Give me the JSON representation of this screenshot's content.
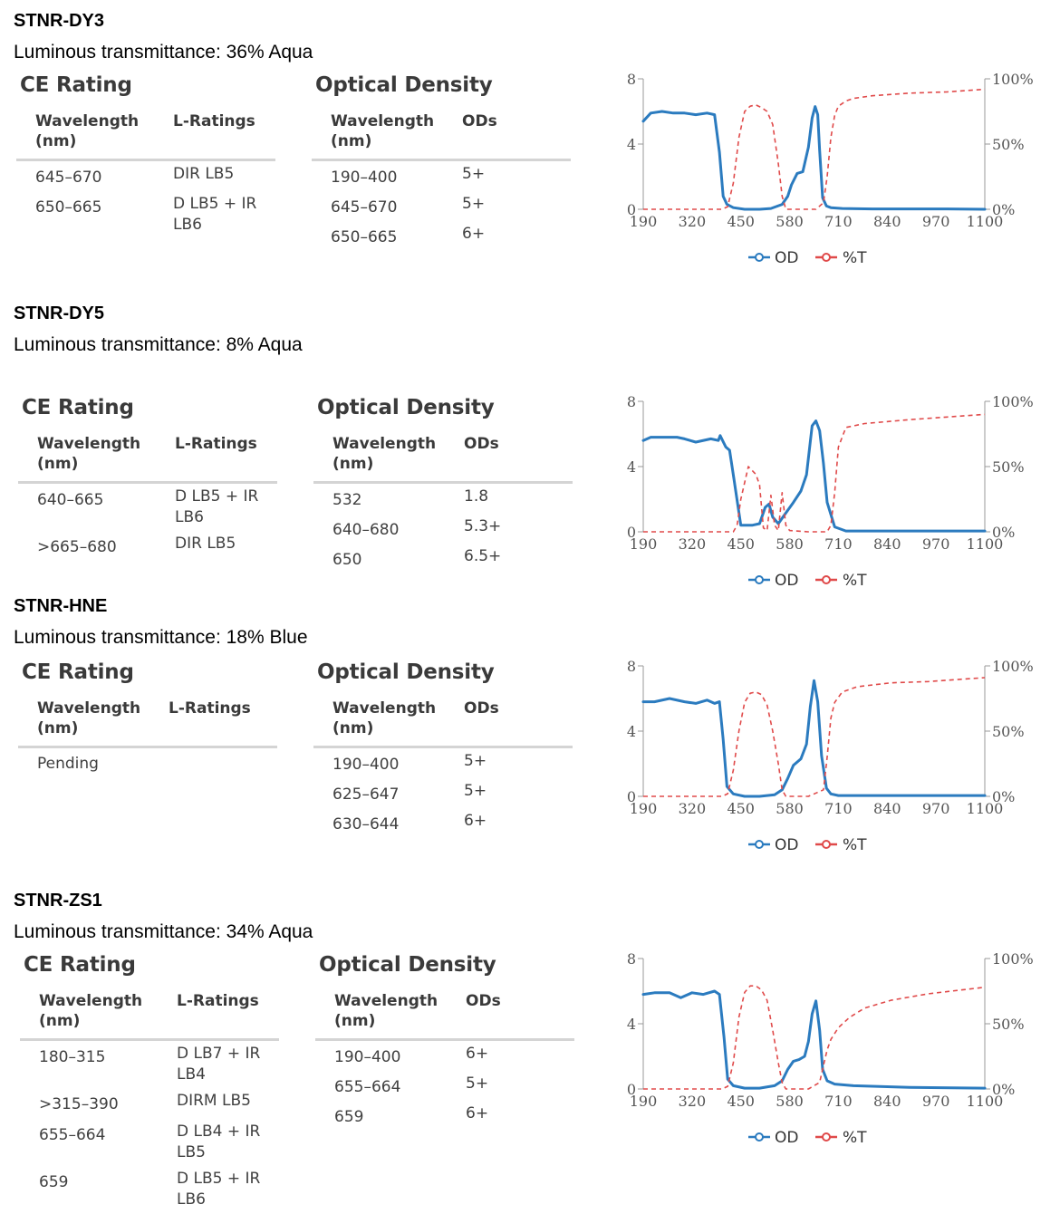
{
  "products": [
    {
      "name": "STNR-DY3",
      "luminous": "Luminous transmittance: 36% Aqua",
      "ce": {
        "title": "CE Rating",
        "col1": "Wavelength (nm)",
        "col2": "L-Ratings",
        "rows": [
          {
            "wavelength": "645–670",
            "rating": "DIR LB5"
          },
          {
            "wavelength": "650–665",
            "rating": "D LB5 + IR LB6"
          }
        ]
      },
      "od": {
        "title": "Optical Density",
        "col1": "Wavelength (nm)",
        "col2": "ODs",
        "rows": [
          {
            "wavelength": "190–400",
            "od": "5+"
          },
          {
            "wavelength": "645–670",
            "od": "5+"
          },
          {
            "wavelength": "650–665",
            "od": "6+"
          }
        ]
      }
    },
    {
      "name": "STNR-DY5",
      "luminous": "Luminous transmittance: 8% Aqua",
      "ce": {
        "title": "CE Rating",
        "col1": "Wavelength (nm)",
        "col2": "L-Ratings",
        "rows": [
          {
            "wavelength": "640–665",
            "rating": "D LB5 + IR LB6"
          },
          {
            "wavelength": ">665–680",
            "rating": "DIR LB5"
          }
        ]
      },
      "od": {
        "title": "Optical Density",
        "col1": "Wavelength (nm)",
        "col2": "ODs",
        "rows": [
          {
            "wavelength": "532",
            "od": "1.8"
          },
          {
            "wavelength": "640–680",
            "od": "5.3+"
          },
          {
            "wavelength": "650",
            "od": "6.5+"
          }
        ]
      }
    },
    {
      "name": "STNR-HNE",
      "luminous": "Luminous transmittance: 18% Blue",
      "ce": {
        "title": "CE Rating",
        "col1": "Wavelength (nm)",
        "col2": "L-Ratings",
        "rows": [
          {
            "wavelength": "Pending",
            "rating": ""
          }
        ]
      },
      "od": {
        "title": "Optical Density",
        "col1": "Wavelength (nm)",
        "col2": "ODs",
        "rows": [
          {
            "wavelength": "190–400",
            "od": "5+"
          },
          {
            "wavelength": "625–647",
            "od": "5+"
          },
          {
            "wavelength": "630–644",
            "od": "6+"
          }
        ]
      }
    },
    {
      "name": "STNR-ZS1",
      "luminous": "Luminous transmittance: 34% Aqua",
      "ce": {
        "title": "CE Rating",
        "col1": "Wavelength (nm)",
        "col2": "L-Ratings",
        "rows": [
          {
            "wavelength": "180–315",
            "rating": "D LB7 + IR LB4"
          },
          {
            "wavelength": ">315–390",
            "rating": "DIRM LB5"
          },
          {
            "wavelength": "655–664",
            "rating": "D LB4 + IR LB5"
          },
          {
            "wavelength": "659",
            "rating": "D LB5 + IR LB6"
          }
        ]
      },
      "od": {
        "title": "Optical Density",
        "col1": "Wavelength (nm)",
        "col2": "ODs",
        "rows": [
          {
            "wavelength": "190–400",
            "od": "6+"
          },
          {
            "wavelength": "655–664",
            "od": "5+"
          },
          {
            "wavelength": "659",
            "od": "6+"
          }
        ]
      }
    }
  ],
  "colors": {
    "od": "#2b7bbf",
    "transmittance": "#e04a4a",
    "axis": "#999999",
    "tick_text": "#555555"
  },
  "chart_data": [
    {
      "type": "line",
      "x_ticks": [
        "190",
        "320",
        "450",
        "580",
        "710",
        "840",
        "970",
        "1100"
      ],
      "y_left_ticks": [
        "0",
        "4",
        "8"
      ],
      "y_right_ticks": [
        "0%",
        "50%",
        "100%"
      ],
      "xlim": [
        190,
        1100
      ],
      "ylim": [
        0,
        8
      ],
      "y2lim": [
        0,
        100
      ],
      "legend": [
        "OD",
        "%T"
      ],
      "series": [
        {
          "name": "OD",
          "axis": "left",
          "x": [
            190,
            210,
            240,
            270,
            300,
            330,
            360,
            380,
            393,
            403,
            413,
            430,
            460,
            500,
            530,
            560,
            575,
            585,
            600,
            615,
            630,
            640,
            648,
            655,
            660,
            668,
            678,
            690,
            720,
            800,
            900,
            1000,
            1100
          ],
          "y": [
            5.4,
            5.9,
            6.0,
            5.9,
            5.9,
            5.8,
            5.9,
            5.8,
            3.5,
            0.8,
            0.3,
            0.1,
            0.0,
            0.0,
            0.05,
            0.3,
            0.8,
            1.5,
            2.2,
            2.3,
            3.8,
            5.6,
            6.3,
            5.8,
            3.6,
            0.7,
            0.2,
            0.1,
            0.05,
            0.02,
            0.02,
            0.02,
            0.0
          ]
        },
        {
          "name": "%T",
          "axis": "right",
          "x": [
            190,
            400,
            415,
            430,
            445,
            460,
            475,
            490,
            505,
            520,
            535,
            550,
            560,
            570,
            600,
            650,
            670,
            680,
            690,
            700,
            710,
            730,
            750,
            800,
            900,
            1000,
            1100
          ],
          "y": [
            0,
            0,
            2,
            20,
            55,
            75,
            79,
            80,
            78,
            75,
            65,
            35,
            10,
            0,
            0,
            0,
            5,
            25,
            55,
            72,
            79,
            83,
            85,
            87,
            89,
            90,
            92
          ]
        }
      ]
    },
    {
      "type": "line",
      "x_ticks": [
        "190",
        "320",
        "450",
        "580",
        "710",
        "840",
        "970",
        "1100"
      ],
      "y_left_ticks": [
        "0",
        "4",
        "8"
      ],
      "y_right_ticks": [
        "0%",
        "50%",
        "100%"
      ],
      "xlim": [
        190,
        1100
      ],
      "ylim": [
        0,
        8
      ],
      "y2lim": [
        0,
        100
      ],
      "legend": [
        "OD",
        "%T"
      ],
      "series": [
        {
          "name": "OD",
          "axis": "left",
          "x": [
            190,
            210,
            250,
            280,
            300,
            330,
            370,
            390,
            395,
            410,
            420,
            430,
            450,
            480,
            500,
            515,
            525,
            535,
            550,
            565,
            590,
            610,
            625,
            640,
            650,
            660,
            670,
            680,
            700,
            730,
            800,
            1100
          ],
          "y": [
            5.6,
            5.8,
            5.8,
            5.8,
            5.7,
            5.5,
            5.7,
            5.6,
            5.9,
            5.2,
            5.0,
            3.5,
            0.4,
            0.4,
            0.5,
            1.5,
            1.7,
            0.9,
            0.5,
            1.0,
            1.8,
            2.5,
            3.5,
            6.5,
            6.8,
            6.2,
            4.2,
            1.8,
            0.3,
            0.05,
            0.05,
            0.05
          ]
        },
        {
          "name": "%T",
          "axis": "right",
          "x": [
            190,
            430,
            440,
            450,
            470,
            490,
            500,
            510,
            520,
            530,
            540,
            550,
            560,
            570,
            580,
            630,
            680,
            690,
            700,
            710,
            730,
            780,
            900,
            1000,
            1100
          ],
          "y": [
            0,
            0,
            5,
            25,
            50,
            44,
            36,
            3,
            1,
            28,
            5,
            1,
            30,
            5,
            1,
            0,
            0,
            5,
            30,
            65,
            80,
            83,
            86,
            88,
            90
          ]
        }
      ]
    },
    {
      "type": "line",
      "x_ticks": [
        "190",
        "320",
        "450",
        "580",
        "710",
        "840",
        "970",
        "1100"
      ],
      "y_left_ticks": [
        "0",
        "4",
        "8"
      ],
      "y_right_ticks": [
        "0%",
        "50%",
        "100%"
      ],
      "xlim": [
        190,
        1100
      ],
      "ylim": [
        0,
        8
      ],
      "y2lim": [
        0,
        100
      ],
      "legend": [
        "OD",
        "%T"
      ],
      "series": [
        {
          "name": "OD",
          "axis": "left",
          "x": [
            190,
            220,
            260,
            300,
            330,
            360,
            380,
            393,
            403,
            413,
            430,
            460,
            500,
            540,
            560,
            575,
            590,
            610,
            625,
            635,
            645,
            655,
            665,
            678,
            690,
            710,
            800,
            1100
          ],
          "y": [
            5.8,
            5.8,
            6.0,
            5.8,
            5.7,
            5.9,
            5.7,
            5.8,
            3.5,
            0.6,
            0.15,
            0.0,
            0.0,
            0.1,
            0.4,
            1.1,
            1.9,
            2.3,
            3.2,
            5.5,
            7.1,
            5.8,
            2.5,
            0.5,
            0.15,
            0.05,
            0.05,
            0.05
          ]
        },
        {
          "name": "%T",
          "axis": "right",
          "x": [
            190,
            400,
            415,
            430,
            445,
            460,
            475,
            490,
            505,
            520,
            535,
            550,
            560,
            570,
            630,
            670,
            680,
            690,
            700,
            720,
            760,
            850,
            950,
            1000,
            1100
          ],
          "y": [
            0,
            0,
            2,
            20,
            50,
            72,
            79,
            80,
            78,
            70,
            50,
            25,
            5,
            0,
            0,
            5,
            30,
            60,
            72,
            80,
            84,
            87,
            88,
            89,
            91
          ]
        }
      ]
    },
    {
      "type": "line",
      "x_ticks": [
        "190",
        "320",
        "450",
        "580",
        "710",
        "840",
        "970",
        "1100"
      ],
      "y_left_ticks": [
        "0",
        "4",
        "8"
      ],
      "y_right_ticks": [
        "0%",
        "50%",
        "100%"
      ],
      "xlim": [
        190,
        1100
      ],
      "ylim": [
        0,
        8
      ],
      "y2lim": [
        0,
        100
      ],
      "legend": [
        "OD",
        "%T"
      ],
      "series": [
        {
          "name": "OD",
          "axis": "left",
          "x": [
            190,
            220,
            260,
            290,
            320,
            350,
            380,
            393,
            405,
            415,
            430,
            460,
            500,
            540,
            560,
            575,
            590,
            605,
            620,
            630,
            640,
            650,
            660,
            668,
            680,
            700,
            750,
            900,
            1100
          ],
          "y": [
            5.8,
            5.9,
            5.9,
            5.6,
            5.9,
            5.8,
            6.0,
            5.8,
            3.2,
            0.6,
            0.2,
            0.05,
            0.05,
            0.2,
            0.5,
            1.2,
            1.7,
            1.8,
            2.0,
            2.9,
            4.6,
            5.4,
            3.6,
            1.2,
            0.5,
            0.3,
            0.2,
            0.1,
            0.05
          ]
        },
        {
          "name": "%T",
          "axis": "right",
          "x": [
            190,
            400,
            415,
            430,
            445,
            460,
            475,
            490,
            505,
            520,
            535,
            550,
            560,
            570,
            630,
            660,
            670,
            680,
            690,
            710,
            740,
            780,
            850,
            950,
            1100
          ],
          "y": [
            0,
            0,
            2,
            20,
            55,
            74,
            79,
            79,
            76,
            68,
            45,
            20,
            5,
            0,
            0,
            5,
            18,
            30,
            38,
            47,
            55,
            62,
            68,
            73,
            78
          ]
        }
      ]
    }
  ]
}
